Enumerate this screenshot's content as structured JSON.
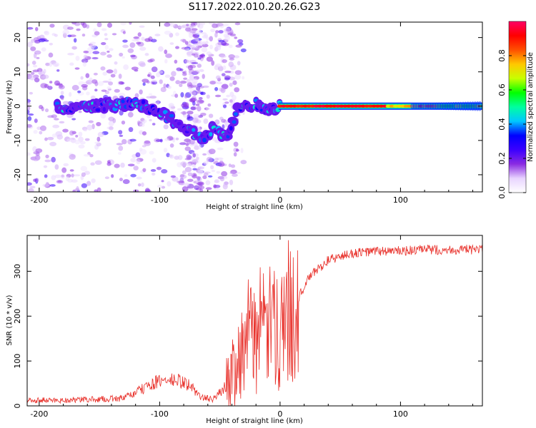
{
  "title": "S117.2022.010.20.26.G23",
  "chart_data": [
    {
      "type": "heatmap",
      "xlabel": "Height of straight line (km)",
      "ylabel": "Frequency (Hz)",
      "xlim": [
        -210,
        168
      ],
      "ylim": [
        -25,
        24.5
      ],
      "xticks": [
        -200,
        -100,
        0,
        100
      ],
      "yticks": [
        -20,
        -10,
        0,
        10,
        20
      ],
      "colorbar": {
        "label": "Normalized spectral amplitude",
        "range": [
          0,
          1
        ],
        "ticks": [
          0.0,
          0.2,
          0.4,
          0.6,
          0.8
        ],
        "colormap": [
          "#ffffff",
          "#e8d4ff",
          "#8a2be2",
          "#3b00ff",
          "#0000ff",
          "#00c8ff",
          "#00ffa0",
          "#00ff00",
          "#c8ff00",
          "#ffc800",
          "#ff5000",
          "#ff0000",
          "#ff0066"
        ]
      },
      "ridge": {
        "description_points": [
          {
            "x": -180,
            "y": -1
          },
          {
            "x": -150,
            "y": 0
          },
          {
            "x": -120,
            "y": 1
          },
          {
            "x": -105,
            "y": -1
          },
          {
            "x": -90,
            "y": -4
          },
          {
            "x": -75,
            "y": -7
          },
          {
            "x": -65,
            "y": -10
          },
          {
            "x": -55,
            "y": -6
          },
          {
            "x": -45,
            "y": -9
          },
          {
            "x": -35,
            "y": -1
          },
          {
            "x": -20,
            "y": 1
          },
          {
            "x": -10,
            "y": -2
          },
          {
            "x": 0,
            "y": 0
          },
          {
            "x": 168,
            "y": 0
          }
        ]
      }
    },
    {
      "type": "line",
      "xlabel": "Height of straight line (km)",
      "ylabel": "SNR (10 * v/v)",
      "xlim": [
        -210,
        168
      ],
      "ylim": [
        0,
        380
      ],
      "xticks": [
        -200,
        -100,
        0,
        100
      ],
      "yticks": [
        0,
        100,
        200,
        300
      ],
      "color": "#e8302a",
      "series": [
        {
          "x": [
            -210,
            -180,
            -150,
            -130,
            -120,
            -105,
            -95,
            -85,
            -75,
            -65,
            -55,
            -45,
            -35,
            -25,
            -15,
            -5,
            5,
            15,
            25,
            40,
            60,
            80,
            100,
            120,
            140,
            168
          ],
          "values": [
            10,
            10,
            12,
            14,
            25,
            45,
            50,
            50,
            40,
            15,
            12,
            40,
            110,
            160,
            170,
            170,
            200,
            240,
            290,
            325,
            340,
            345,
            345,
            348,
            348,
            348
          ]
        }
      ]
    }
  ]
}
